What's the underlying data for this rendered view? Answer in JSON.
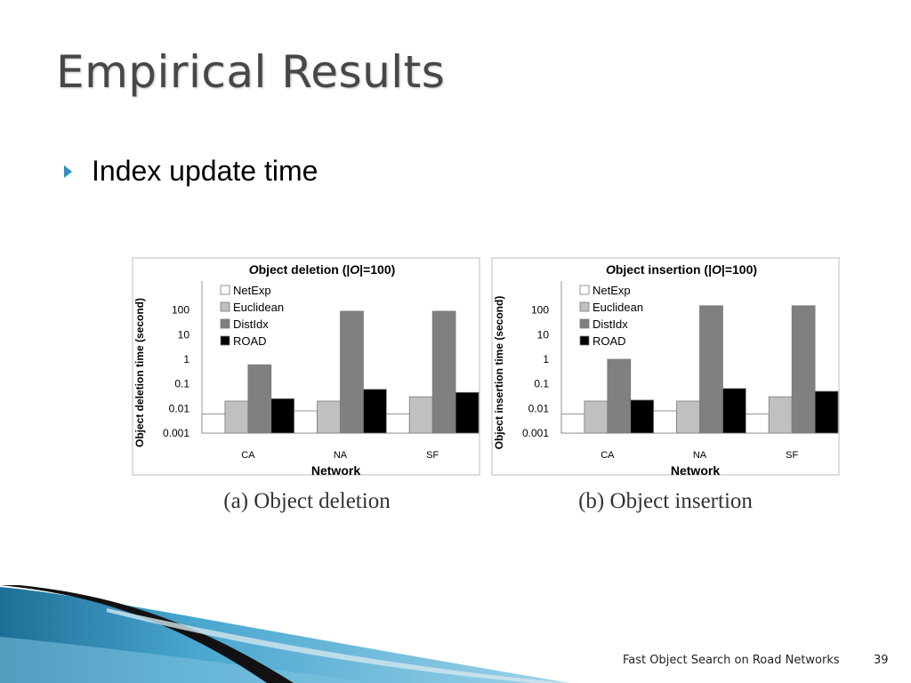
{
  "slide": {
    "title": "Empirical Results",
    "bullet": "Index update time",
    "footer": "Fast Object Search on Road Networks",
    "page_number": "39"
  },
  "colors": {
    "title": "#474747",
    "bullet_arrow": "#2e8fbf",
    "NetExp": "#ffffff",
    "Euclidean": "#c0c0c0",
    "DistIdx": "#808080",
    "ROAD": "#000000"
  },
  "chart_data": [
    {
      "type": "bar",
      "title": "Object deletion (|O|=100)",
      "ylabel": "Object deletion time (second)",
      "xlabel": "Network",
      "caption": "(a) Object deletion",
      "yscale": "log",
      "ylim": [
        0.001,
        1000
      ],
      "yticks": [
        "0.001",
        "0.01",
        "0.1",
        "1",
        "10",
        "100"
      ],
      "categories": [
        "CA",
        "NA",
        "SF"
      ],
      "legend_position": "top-left",
      "grid": false,
      "series": [
        {
          "name": "NetExp",
          "values": [
            0.006,
            0.008,
            0.006
          ]
        },
        {
          "name": "Euclidean",
          "values": [
            0.02,
            0.02,
            0.03
          ]
        },
        {
          "name": "DistIdx",
          "values": [
            0.6,
            90,
            90
          ]
        },
        {
          "name": "ROAD",
          "values": [
            0.025,
            0.06,
            0.045
          ]
        }
      ]
    },
    {
      "type": "bar",
      "title": "Object insertion (|O|=100)",
      "ylabel": "Object insertion time (second)",
      "xlabel": "Network",
      "caption": "(b) Object insertion",
      "yscale": "log",
      "ylim": [
        0.001,
        1000
      ],
      "yticks": [
        "0.001",
        "0.01",
        "0.1",
        "1",
        "10",
        "100"
      ],
      "categories": [
        "CA",
        "NA",
        "SF"
      ],
      "legend_position": "top-left",
      "grid": false,
      "series": [
        {
          "name": "NetExp",
          "values": [
            0.006,
            0.008,
            0.006
          ]
        },
        {
          "name": "Euclidean",
          "values": [
            0.02,
            0.02,
            0.03
          ]
        },
        {
          "name": "DistIdx",
          "values": [
            1,
            150,
            150
          ]
        },
        {
          "name": "ROAD",
          "values": [
            0.022,
            0.065,
            0.05
          ]
        }
      ]
    }
  ]
}
